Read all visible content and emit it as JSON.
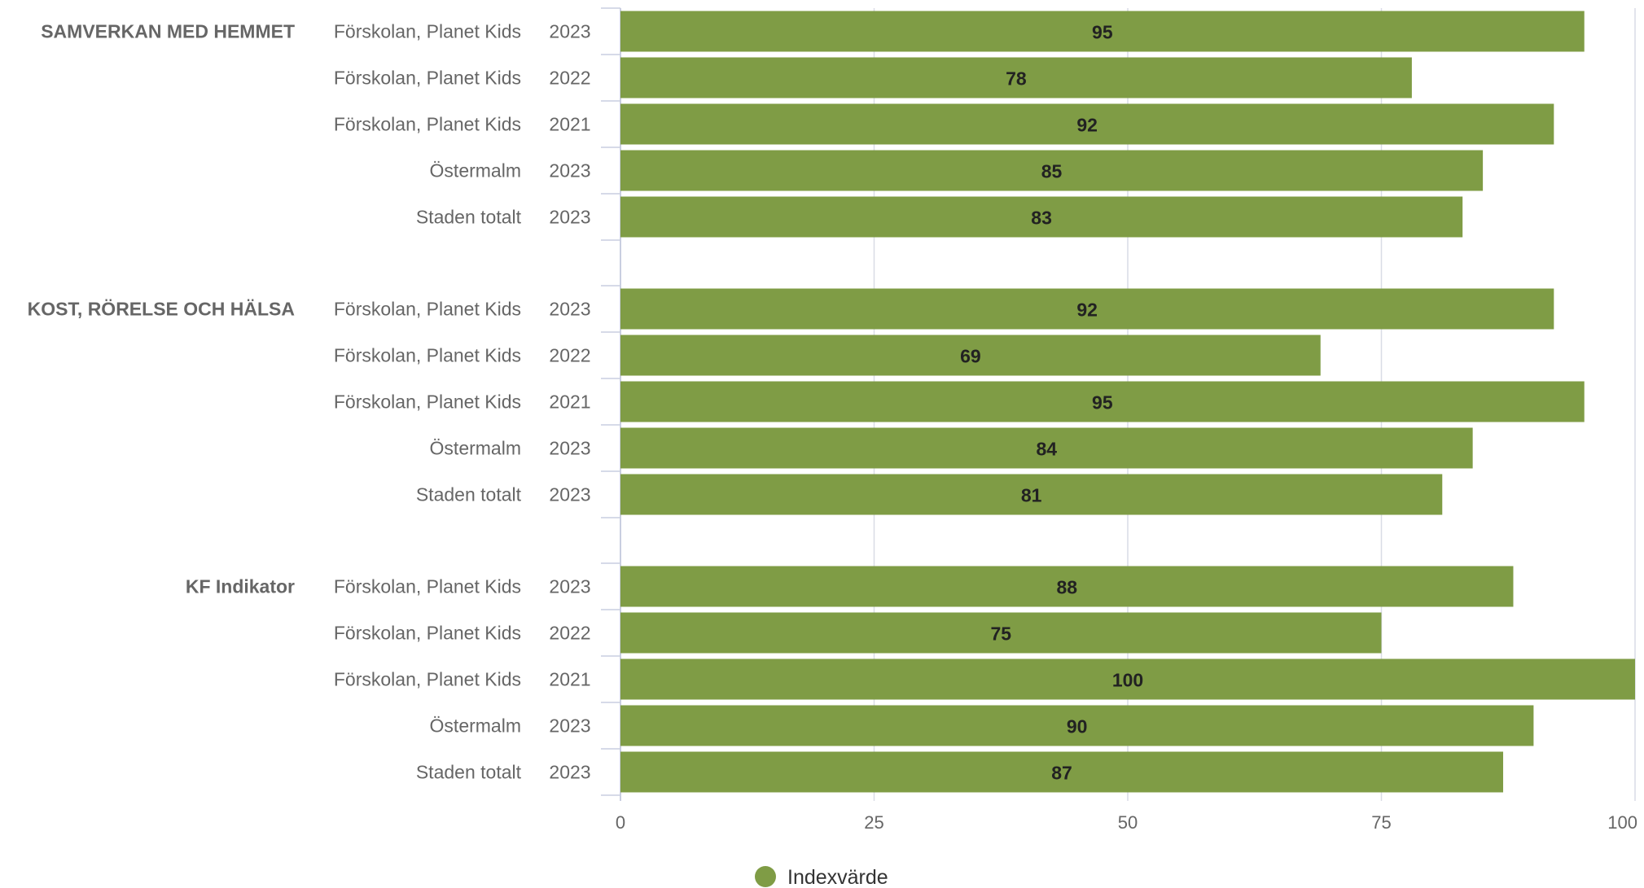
{
  "chart_data": {
    "type": "bar",
    "orientation": "horizontal",
    "xlim": [
      0,
      100
    ],
    "xticks": [
      "0",
      "25",
      "50",
      "75",
      "100"
    ],
    "grid": true,
    "groups": [
      {
        "label": "SAMVERKAN MED HEMMET",
        "rows": [
          {
            "unit": "Förskolan, Planet Kids",
            "year": "2023",
            "value": 95
          },
          {
            "unit": "Förskolan, Planet Kids",
            "year": "2022",
            "value": 78
          },
          {
            "unit": "Förskolan, Planet Kids",
            "year": "2021",
            "value": 92
          },
          {
            "unit": "Östermalm",
            "year": "2023",
            "value": 85
          },
          {
            "unit": "Staden totalt",
            "year": "2023",
            "value": 83
          }
        ]
      },
      {
        "label": "KOST, RÖRELSE OCH HÄLSA",
        "rows": [
          {
            "unit": "Förskolan, Planet Kids",
            "year": "2023",
            "value": 92
          },
          {
            "unit": "Förskolan, Planet Kids",
            "year": "2022",
            "value": 69
          },
          {
            "unit": "Förskolan, Planet Kids",
            "year": "2021",
            "value": 95
          },
          {
            "unit": "Östermalm",
            "year": "2023",
            "value": 84
          },
          {
            "unit": "Staden totalt",
            "year": "2023",
            "value": 81
          }
        ]
      },
      {
        "label": "KF Indikator",
        "rows": [
          {
            "unit": "Förskolan, Planet Kids",
            "year": "2023",
            "value": 88
          },
          {
            "unit": "Förskolan, Planet Kids",
            "year": "2022",
            "value": 75
          },
          {
            "unit": "Förskolan, Planet Kids",
            "year": "2021",
            "value": 100
          },
          {
            "unit": "Östermalm",
            "year": "2023",
            "value": 90
          },
          {
            "unit": "Staden totalt",
            "year": "2023",
            "value": 87
          }
        ]
      }
    ],
    "series": [
      {
        "name": "Indexvärde",
        "color": "#7f9c45"
      }
    ],
    "legend_position": "bottom-center"
  }
}
